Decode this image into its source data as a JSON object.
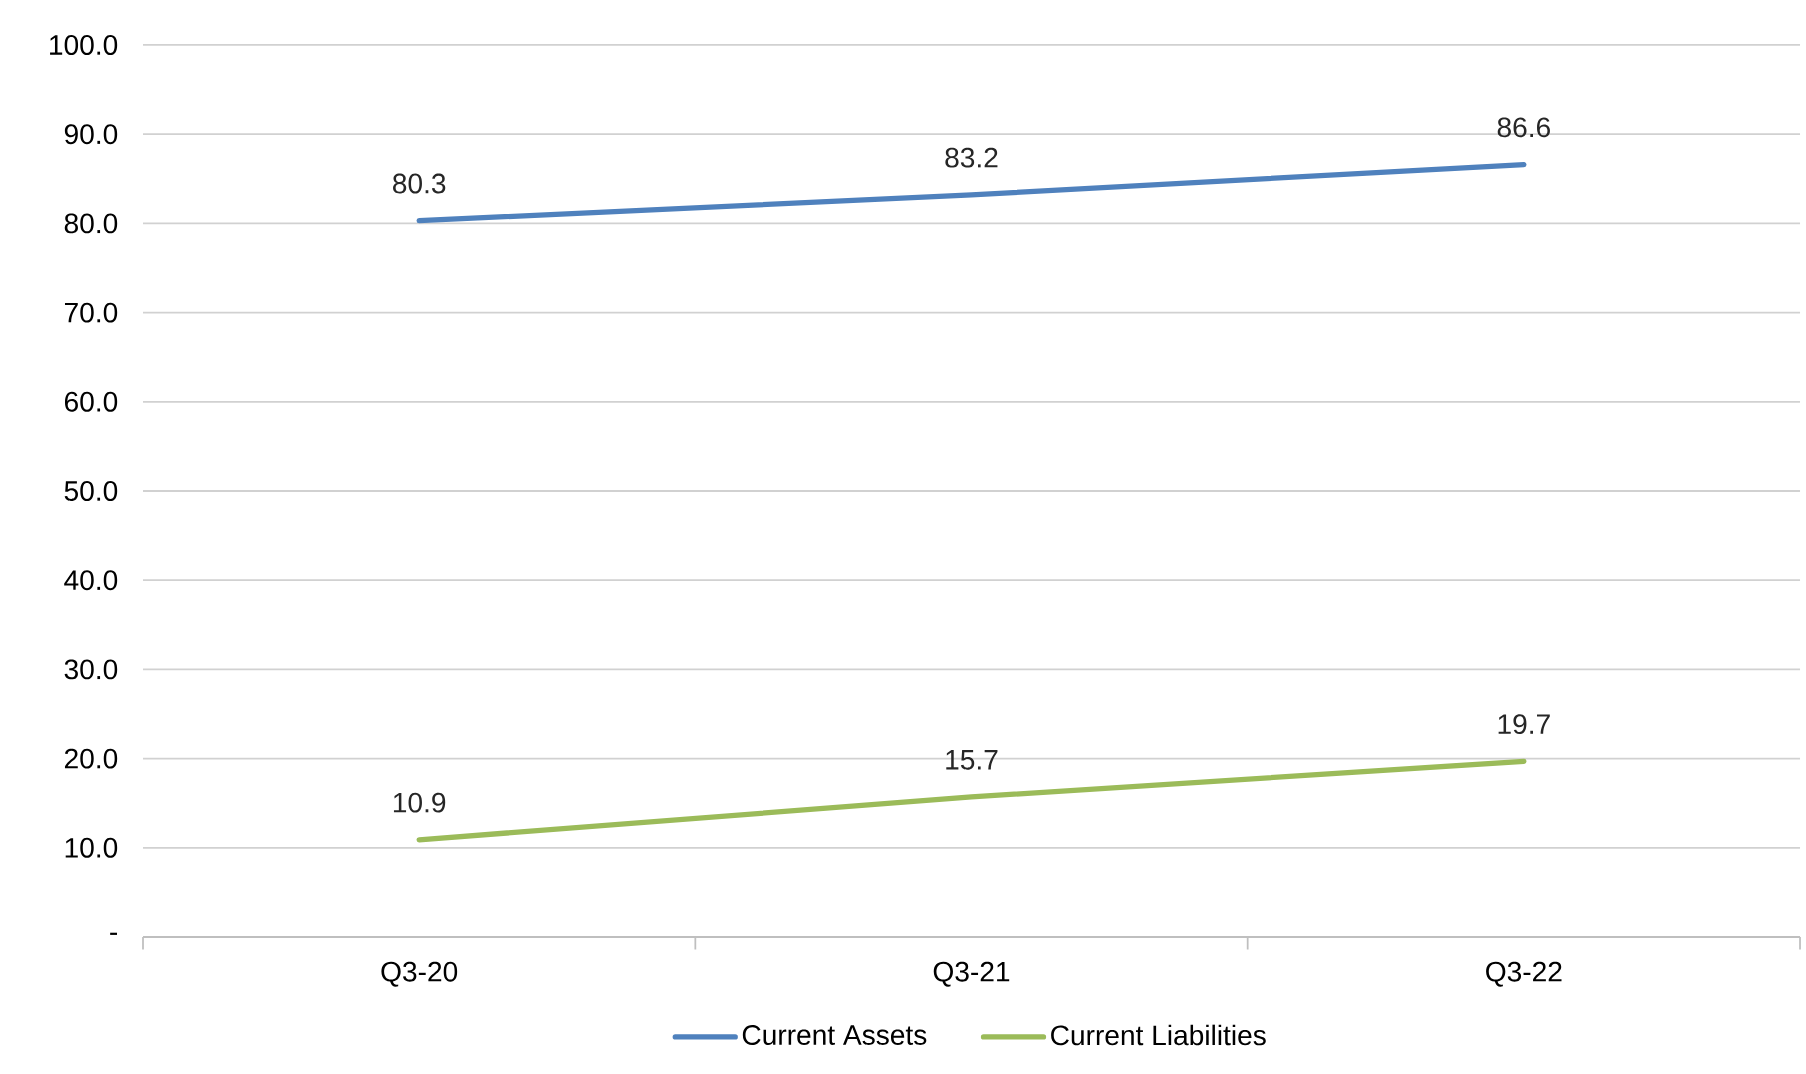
{
  "chart_data": {
    "type": "line",
    "categories": [
      "Q3-20",
      "Q3-21",
      "Q3-22"
    ],
    "series": [
      {
        "name": "Current Assets",
        "color": "#4f81bd",
        "values": [
          80.3,
          83.2,
          86.6
        ]
      },
      {
        "name": "Current Liabilities",
        "color": "#9bbb59",
        "values": [
          10.9,
          15.7,
          19.7
        ]
      }
    ],
    "ylim": [
      0,
      100
    ],
    "yticks": [
      {
        "value": 0,
        "label": "-"
      },
      {
        "value": 10,
        "label": "10.0"
      },
      {
        "value": 20,
        "label": "20.0"
      },
      {
        "value": 30,
        "label": "30.0"
      },
      {
        "value": 40,
        "label": "40.0"
      },
      {
        "value": 50,
        "label": "50.0"
      },
      {
        "value": 60,
        "label": "60.0"
      },
      {
        "value": 70,
        "label": "70.0"
      },
      {
        "value": 80,
        "label": "80.0"
      },
      {
        "value": 90,
        "label": "90.0"
      },
      {
        "value": 100,
        "label": "100.0"
      }
    ],
    "grid": "y",
    "legend": "bottom",
    "data_labels": true,
    "marker": "none",
    "line_style": "solid"
  }
}
